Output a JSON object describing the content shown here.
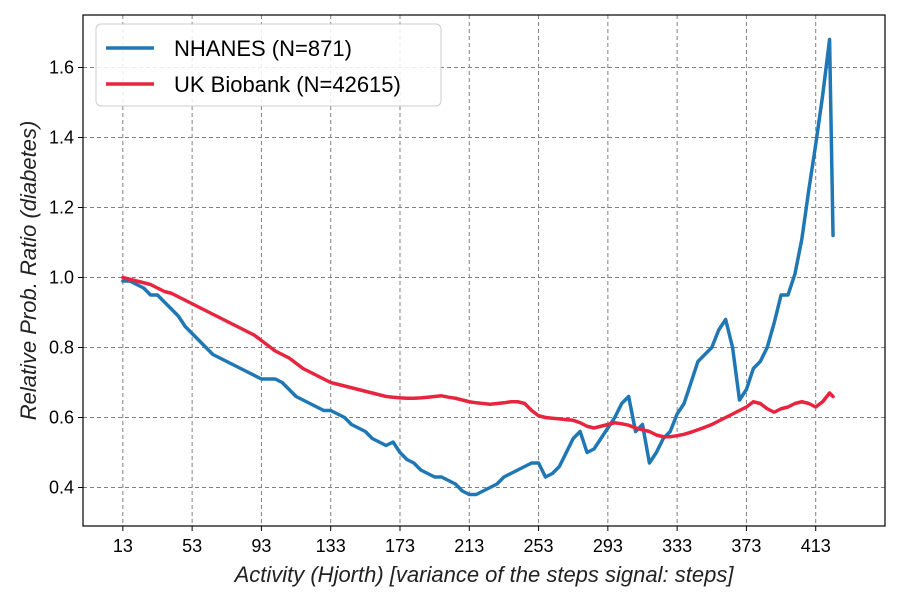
{
  "chart_data": {
    "type": "line",
    "title": "",
    "xlabel": "Activity (Hjorth) [variance of the steps signal: steps]",
    "ylabel": "Relative Prob. Ratio (diabetes)",
    "xlim": [
      -10,
      453
    ],
    "ylim": [
      0.29,
      1.75
    ],
    "xticks": [
      13,
      53,
      93,
      133,
      173,
      213,
      253,
      293,
      333,
      373,
      413
    ],
    "yticks": [
      0.4,
      0.6,
      0.8,
      1.0,
      1.2,
      1.4,
      1.6
    ],
    "ytick_labels": [
      "0.4",
      "0.6",
      "0.8",
      "1.0",
      "1.2",
      "1.4",
      "1.6"
    ],
    "grid": true,
    "legend_position": "top-left",
    "series": [
      {
        "name": "NHANES (N=871)",
        "color": "#1f77b4",
        "x": [
          13,
          17,
          21,
          25,
          29,
          33,
          37,
          41,
          45,
          49,
          53,
          57,
          61,
          65,
          69,
          73,
          77,
          81,
          85,
          89,
          93,
          97,
          101,
          105,
          109,
          113,
          117,
          121,
          125,
          129,
          133,
          137,
          141,
          145,
          149,
          153,
          157,
          161,
          165,
          169,
          173,
          177,
          181,
          185,
          189,
          193,
          197,
          201,
          205,
          209,
          213,
          217,
          221,
          225,
          229,
          233,
          237,
          241,
          245,
          249,
          253,
          257,
          261,
          265,
          269,
          273,
          277,
          281,
          285,
          289,
          293,
          297,
          301,
          305,
          309,
          313,
          317,
          321,
          325,
          329,
          333,
          337,
          341,
          345,
          349,
          353,
          357,
          361,
          365,
          369,
          373,
          377,
          381,
          385,
          389,
          393,
          397,
          401,
          405,
          409,
          413,
          417,
          421,
          423
        ],
        "values": [
          0.99,
          0.99,
          0.98,
          0.97,
          0.95,
          0.95,
          0.93,
          0.91,
          0.89,
          0.86,
          0.84,
          0.82,
          0.8,
          0.78,
          0.77,
          0.76,
          0.75,
          0.74,
          0.73,
          0.72,
          0.71,
          0.71,
          0.71,
          0.7,
          0.68,
          0.66,
          0.65,
          0.64,
          0.63,
          0.62,
          0.62,
          0.61,
          0.6,
          0.58,
          0.57,
          0.56,
          0.54,
          0.53,
          0.52,
          0.53,
          0.5,
          0.48,
          0.47,
          0.45,
          0.44,
          0.43,
          0.43,
          0.42,
          0.41,
          0.39,
          0.38,
          0.38,
          0.39,
          0.4,
          0.41,
          0.43,
          0.44,
          0.45,
          0.46,
          0.47,
          0.47,
          0.43,
          0.44,
          0.46,
          0.5,
          0.54,
          0.56,
          0.5,
          0.51,
          0.54,
          0.57,
          0.6,
          0.64,
          0.66,
          0.56,
          0.58,
          0.47,
          0.5,
          0.54,
          0.56,
          0.61,
          0.64,
          0.7,
          0.76,
          0.78,
          0.8,
          0.85,
          0.88,
          0.8,
          0.65,
          0.68,
          0.74,
          0.76,
          0.8,
          0.87,
          0.95,
          0.95,
          1.01,
          1.11,
          1.25,
          1.38,
          1.52,
          1.68,
          1.12
        ]
      },
      {
        "name": "UK Biobank (N=42615)",
        "color": "#e8253f",
        "x": [
          13,
          17,
          21,
          25,
          29,
          33,
          37,
          41,
          45,
          49,
          53,
          57,
          61,
          65,
          69,
          73,
          77,
          81,
          85,
          89,
          93,
          97,
          101,
          105,
          109,
          113,
          117,
          121,
          125,
          129,
          133,
          137,
          141,
          145,
          149,
          153,
          157,
          161,
          165,
          169,
          173,
          177,
          181,
          185,
          189,
          193,
          197,
          201,
          205,
          209,
          213,
          217,
          221,
          225,
          229,
          233,
          237,
          241,
          245,
          249,
          253,
          257,
          261,
          265,
          269,
          273,
          277,
          281,
          285,
          289,
          293,
          297,
          301,
          305,
          309,
          313,
          317,
          321,
          325,
          329,
          333,
          337,
          341,
          345,
          349,
          353,
          357,
          361,
          365,
          369,
          373,
          377,
          381,
          385,
          389,
          393,
          397,
          401,
          405,
          409,
          413,
          417,
          421,
          423
        ],
        "values": [
          1.0,
          0.995,
          0.99,
          0.985,
          0.98,
          0.97,
          0.96,
          0.955,
          0.945,
          0.935,
          0.925,
          0.915,
          0.905,
          0.895,
          0.885,
          0.875,
          0.865,
          0.855,
          0.845,
          0.835,
          0.82,
          0.805,
          0.79,
          0.78,
          0.77,
          0.755,
          0.74,
          0.73,
          0.72,
          0.71,
          0.7,
          0.695,
          0.69,
          0.685,
          0.68,
          0.675,
          0.67,
          0.665,
          0.66,
          0.658,
          0.656,
          0.655,
          0.655,
          0.656,
          0.658,
          0.66,
          0.662,
          0.658,
          0.655,
          0.65,
          0.645,
          0.642,
          0.64,
          0.638,
          0.64,
          0.642,
          0.645,
          0.645,
          0.64,
          0.62,
          0.605,
          0.6,
          0.598,
          0.596,
          0.594,
          0.592,
          0.585,
          0.575,
          0.57,
          0.575,
          0.58,
          0.585,
          0.582,
          0.578,
          0.57,
          0.565,
          0.56,
          0.55,
          0.545,
          0.545,
          0.548,
          0.552,
          0.558,
          0.565,
          0.572,
          0.58,
          0.59,
          0.6,
          0.61,
          0.62,
          0.63,
          0.645,
          0.64,
          0.625,
          0.615,
          0.625,
          0.63,
          0.64,
          0.645,
          0.64,
          0.63,
          0.645,
          0.67,
          0.66
        ]
      }
    ]
  }
}
